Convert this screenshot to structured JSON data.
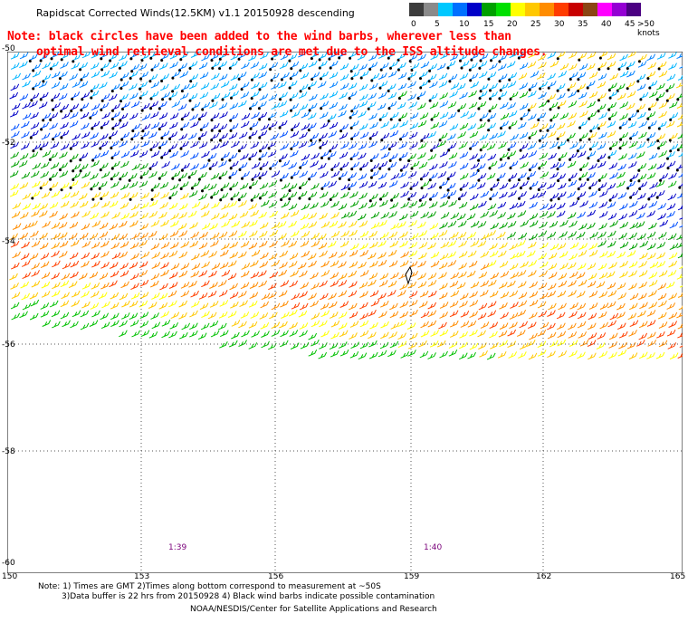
{
  "title": "Rapidscat Corrected Winds(12.5KM) v1.1 20150928 descending",
  "note": {
    "line1": "Note: black circles have been added to the wind barbs, wherever less than",
    "line2": "optimal wind retrieval conditions are met due to the ISS altitude changes."
  },
  "legend": {
    "colors": [
      "#3c3c3c",
      "#8a8a8a",
      "#00c8ff",
      "#0070ff",
      "#0000c8",
      "#00a000",
      "#00e000",
      "#ffff00",
      "#ffc800",
      "#ff8c00",
      "#ff3c00",
      "#c80000",
      "#8b4513",
      "#ff00ff",
      "#9400d3",
      "#4b0082"
    ],
    "labels": [
      "0",
      "5",
      "10",
      "15",
      "20",
      "25",
      "30",
      "35",
      "40",
      "45",
      ">50 knots"
    ],
    "icons": [
      "color-scale"
    ]
  },
  "map": {
    "lat_labels": [
      "-52",
      "-54",
      "-56",
      "-58",
      "-60"
    ],
    "lon_labels": [
      "150",
      "153",
      "156",
      "159",
      "162",
      "165"
    ],
    "top_lat_label": "-50",
    "time_labels": [
      "1:39",
      "1:40"
    ],
    "colors": {
      "grid": "#000000",
      "time": "#7a007a"
    }
  },
  "footnotes": {
    "line1": "Note: 1) Times are GMT 2)Times along bottom correspond to measurement at ~50S",
    "line2": "3)Data buffer is 22 hrs from 20150928 4) Black wind barbs indicate possible contamination"
  },
  "credit": "NOAA/NESDIS/Center for Satellite Applications and Research"
}
